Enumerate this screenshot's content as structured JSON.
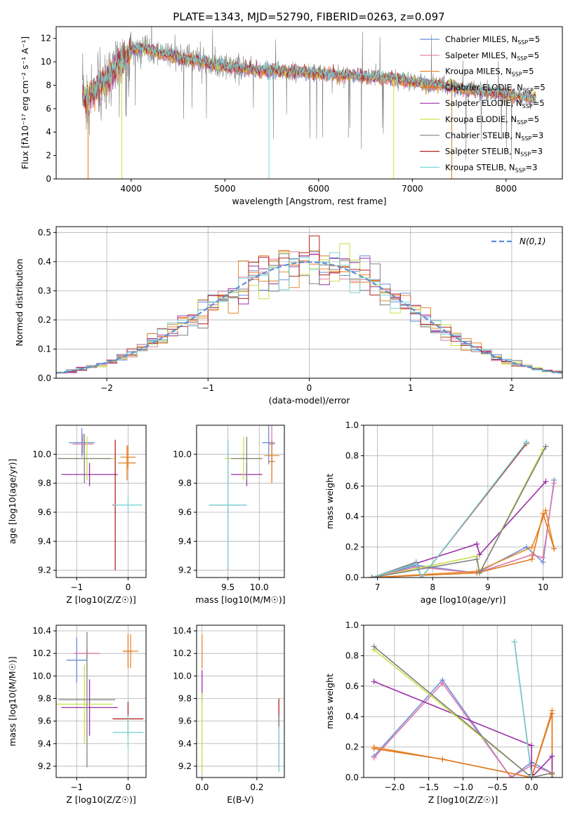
{
  "figure_title": "PLATE=1343, MJD=52790, FIBERID=0263, z=0.097",
  "colors": {
    "Chabrier MILES": "#6a8ed8",
    "Salpeter MILES": "#e07aa6",
    "Kroupa MILES": "#e8892e",
    "Chabrier ELODIE": "#e07a22",
    "Salpeter ELODIE": "#9a2fa6",
    "Kroupa ELODIE": "#c9e04a",
    "Chabrier STELIB": "#808080",
    "Salpeter STELIB": "#b22222",
    "Kroupa STELIB": "#7ad6d9",
    "gaussian": "#5b8fd6",
    "grid": "#b0b0b0",
    "data": "#808080"
  },
  "chart_data": [
    {
      "id": "spectrum",
      "type": "line",
      "title": "PLATE=1343, MJD=52790, FIBERID=0263, z=0.097",
      "xlabel": "wavelength [Angstrom, rest frame]",
      "ylabel": "Flux [fλ10⁻¹⁷ erg cm⁻² s⁻¹ A⁻¹]",
      "xlim": [
        3200,
        8600
      ],
      "ylim": [
        0,
        13
      ],
      "xticks": [
        4000,
        5000,
        6000,
        7000,
        8000
      ],
      "yticks": [
        0,
        2,
        4,
        6,
        8,
        10,
        12
      ],
      "grid": false,
      "legend_loc": "upper right",
      "legend": [
        "Chabrier MILES, N_SSP=5",
        "Salpeter MILES, N_SSP=5",
        "Kroupa MILES, N_SSP=5",
        "Chabrier ELODIE, N_SSP=5",
        "Salpeter ELODIE, N_SSP=5",
        "Kroupa ELODIE, N_SSP=5",
        "Chabrier STELIB, N_SSP=3",
        "Salpeter STELIB, N_SSP=3",
        "Kroupa STELIB, N_SSP=3"
      ],
      "continuum": {
        "x": [
          3500,
          3600,
          3700,
          3800,
          3900,
          4000,
          4100,
          4200,
          4400,
          4600,
          4800,
          5000,
          5200,
          5400,
          5600,
          5800,
          6000,
          6200,
          6400,
          6600,
          6800,
          7000,
          7200,
          7400,
          7600,
          7800,
          8000,
          8200,
          8300
        ],
        "y": [
          7.0,
          7.4,
          8.2,
          9.0,
          10.0,
          10.9,
          11.2,
          11.0,
          10.6,
          10.2,
          9.9,
          9.6,
          9.4,
          9.3,
          9.2,
          9.1,
          9.0,
          8.9,
          8.8,
          8.7,
          8.55,
          8.3,
          8.1,
          7.9,
          7.6,
          7.4,
          7.2,
          7.0,
          6.9
        ]
      }
    },
    {
      "id": "residuals",
      "type": "histogram",
      "xlabel": "(data-model)/error",
      "ylabel": "Normed distribution",
      "xlim": [
        -2.5,
        2.5
      ],
      "ylim": [
        0,
        0.52
      ],
      "xticks": [
        -2,
        -1,
        0,
        1,
        2
      ],
      "yticks": [
        0.0,
        0.1,
        0.2,
        0.3,
        0.4,
        0.5
      ],
      "grid": true,
      "legend_loc": "upper right",
      "legend": [
        "N(0,1)"
      ],
      "reference": "gaussian N(0,1)"
    },
    {
      "id": "age_vs_Z",
      "type": "errorbar",
      "xlabel": "Z [log10(Z/Z☉)]",
      "ylabel": "age  [log10(age/yr)]",
      "xlim": [
        -1.4,
        0.35
      ],
      "ylim": [
        9.15,
        10.2
      ],
      "xticks": [
        -1,
        0
      ],
      "yticks": [
        9.2,
        9.4,
        9.6,
        9.8,
        10.0
      ],
      "grid": true,
      "points": [
        {
          "s": "Chabrier MILES",
          "x": -0.9,
          "xerr": 0.25,
          "y": 10.08,
          "yerr": 0.1
        },
        {
          "s": "Salpeter MILES",
          "x": -0.88,
          "xerr": 0.2,
          "y": 10.07,
          "yerr": 0.07
        },
        {
          "s": "Kroupa MILES",
          "x": 0.0,
          "xerr": 0.15,
          "y": 9.98,
          "yerr": 0.08
        },
        {
          "s": "Chabrier ELODIE",
          "x": -0.02,
          "xerr": 0.17,
          "y": 9.94,
          "yerr": 0.12
        },
        {
          "s": "Salpeter ELODIE",
          "x": -0.75,
          "xerr": 0.55,
          "y": 9.86,
          "yerr": 0.08
        },
        {
          "s": "Kroupa ELODIE",
          "x": -0.8,
          "xerr": 0.55,
          "y": 9.97,
          "yerr": 0.15
        },
        {
          "s": "Chabrier STELIB",
          "x": -0.85,
          "xerr": 0.52,
          "y": 9.97,
          "yerr": 0.17
        },
        {
          "s": "Salpeter STELIB",
          "x": -0.25,
          "xerr": 0.05,
          "y": 9.65,
          "yerr": 0.45
        },
        {
          "s": "Kroupa STELIB",
          "x": 0.0,
          "xerr": 0.28,
          "y": 9.65,
          "yerr": 0.05
        }
      ]
    },
    {
      "id": "age_vs_mass",
      "type": "errorbar",
      "xlabel": "mass [log10(M/M☉)]",
      "ylabel": "",
      "xlim": [
        9.0,
        10.4
      ],
      "ylim": [
        9.15,
        10.2
      ],
      "xticks": [
        9.5,
        10.0
      ],
      "yticks": [
        9.2,
        9.4,
        9.6,
        9.8,
        10.0
      ],
      "grid": true,
      "points": [
        {
          "s": "Chabrier MILES",
          "x": 10.15,
          "xerr": 0.1,
          "y": 10.08,
          "yerr": 0.15
        },
        {
          "s": "Salpeter MILES",
          "x": 10.2,
          "xerr": 0.05,
          "y": 10.07,
          "yerr": 0.15
        },
        {
          "s": "Kroupa MILES",
          "x": 10.2,
          "xerr": 0.12,
          "y": 9.99,
          "yerr": 0.08
        },
        {
          "s": "Chabrier ELODIE",
          "x": 10.2,
          "xerr": 0.05,
          "y": 9.95,
          "yerr": 0.15
        },
        {
          "s": "Salpeter ELODIE",
          "x": 9.8,
          "xerr": 0.25,
          "y": 9.86,
          "yerr": 0.08
        },
        {
          "s": "Kroupa ELODIE",
          "x": 9.75,
          "xerr": 0.3,
          "y": 9.97,
          "yerr": 0.15
        },
        {
          "s": "Chabrier STELIB",
          "x": 9.8,
          "xerr": 0.25,
          "y": 9.97,
          "yerr": 0.15
        },
        {
          "s": "Salpeter STELIB",
          "x": 9.5,
          "xerr": 0.3,
          "y": 9.65,
          "yerr": 0.45
        },
        {
          "s": "Kroupa STELIB",
          "x": 9.5,
          "xerr": 0.3,
          "y": 9.65,
          "yerr": 0.45
        }
      ]
    },
    {
      "id": "massweight_vs_age",
      "type": "line",
      "xlabel": "age  [log10(age/yr)]",
      "ylabel": "mass weight",
      "xlim": [
        6.75,
        10.35
      ],
      "ylim": [
        0,
        1.0
      ],
      "xticks": [
        7,
        8,
        9,
        10
      ],
      "yticks": [
        0.0,
        0.2,
        0.4,
        0.6,
        0.8,
        1.0
      ],
      "grid": true,
      "series": [
        {
          "name": "Chabrier MILES",
          "x": [
            6.9,
            7.7,
            8.8,
            9.7,
            10.0,
            10.2
          ],
          "y": [
            0.0,
            0.08,
            0.03,
            0.2,
            0.1,
            0.64
          ]
        },
        {
          "name": "Salpeter MILES",
          "x": [
            6.9,
            7.7,
            8.8,
            9.8,
            10.0,
            10.2
          ],
          "y": [
            0.0,
            0.07,
            0.03,
            0.15,
            0.13,
            0.62
          ]
        },
        {
          "name": "Kroupa MILES",
          "x": [
            6.9,
            8.8,
            9.8,
            10.05,
            10.2
          ],
          "y": [
            0.0,
            0.04,
            0.2,
            0.44,
            0.19
          ]
        },
        {
          "name": "Chabrier ELODIE",
          "x": [
            6.9,
            8.8,
            9.8,
            10.0,
            10.2
          ],
          "y": [
            0.0,
            0.03,
            0.12,
            0.42,
            0.19
          ]
        },
        {
          "name": "Salpeter ELODIE",
          "x": [
            6.9,
            8.8,
            8.85,
            10.05
          ],
          "y": [
            0.0,
            0.22,
            0.15,
            0.63
          ]
        },
        {
          "name": "Kroupa ELODIE",
          "x": [
            6.9,
            8.8,
            8.85,
            10.0
          ],
          "y": [
            0.0,
            0.14,
            0.03,
            0.84
          ]
        },
        {
          "name": "Chabrier STELIB",
          "x": [
            6.9,
            7.7,
            7.8,
            9.7
          ],
          "y": [
            0.0,
            0.1,
            0.0,
            0.89
          ]
        },
        {
          "name": "Salpeter STELIB",
          "x": [
            6.9,
            7.7,
            7.8,
            9.7
          ],
          "y": [
            0.0,
            0.09,
            0.0,
            0.88
          ]
        },
        {
          "name": "Kroupa STELIB",
          "x": [
            6.9,
            7.7,
            7.8,
            9.7
          ],
          "y": [
            0.0,
            0.09,
            0.0,
            0.89
          ]
        },
        {
          "name": "Chabrier STELIB",
          "x": [
            6.9,
            8.8,
            8.85,
            10.05
          ],
          "y": [
            0.0,
            0.12,
            0.03,
            0.86
          ]
        }
      ]
    },
    {
      "id": "mass_vs_Z",
      "type": "errorbar",
      "xlabel": "Z [log10(Z/Z☉)]",
      "ylabel": "mass [log10(M/M☉)]",
      "xlim": [
        -1.4,
        0.35
      ],
      "ylim": [
        9.1,
        10.45
      ],
      "xticks": [
        -1,
        0
      ],
      "yticks": [
        9.2,
        9.4,
        9.6,
        9.8,
        10.0,
        10.2,
        10.4
      ],
      "grid": true,
      "points": [
        {
          "s": "Chabrier MILES",
          "x": -1.0,
          "xerr": 0.2,
          "y": 10.14,
          "yerr": 0.2
        },
        {
          "s": "Salpeter MILES",
          "x": -0.8,
          "xerr": 0.25,
          "y": 10.2,
          "yerr": 0.05
        },
        {
          "s": "Kroupa MILES",
          "x": 0.05,
          "xerr": 0.15,
          "y": 10.22,
          "yerr": 0.15
        },
        {
          "s": "Chabrier ELODIE",
          "x": 0.0,
          "xerr": 0.1,
          "y": 10.22,
          "yerr": 0.15
        },
        {
          "s": "Salpeter ELODIE",
          "x": -0.75,
          "xerr": 0.55,
          "y": 9.72,
          "yerr": 0.25
        },
        {
          "s": "Kroupa ELODIE",
          "x": -0.85,
          "xerr": 0.55,
          "y": 9.75,
          "yerr": 0.35
        },
        {
          "s": "Chabrier STELIB",
          "x": -0.8,
          "xerr": 0.55,
          "y": 9.79,
          "yerr": 0.6
        },
        {
          "s": "Salpeter STELIB",
          "x": 0.0,
          "xerr": 0.3,
          "y": 9.62,
          "yerr": 0.15
        },
        {
          "s": "Kroupa STELIB",
          "x": 0.0,
          "xerr": 0.3,
          "y": 9.5,
          "yerr": 0.15
        }
      ]
    },
    {
      "id": "mass_vs_ebv",
      "type": "errorbar",
      "xlabel": "E(B-V)",
      "ylabel": "",
      "xlim": [
        -0.02,
        0.3
      ],
      "ylim": [
        9.1,
        10.45
      ],
      "xticks": [
        0.0,
        0.2
      ],
      "yticks": [
        9.2,
        9.4,
        9.6,
        9.8,
        10.0,
        10.2,
        10.4
      ],
      "grid": true,
      "points": [
        {
          "s": "Kroupa MILES",
          "x": 0.0,
          "xerr": 0.0,
          "y": 10.22,
          "yerr": 0.15
        },
        {
          "s": "Salpeter ELODIE",
          "x": 0.0,
          "xerr": 0.0,
          "y": 9.9,
          "yerr": 0.15
        },
        {
          "s": "Kroupa ELODIE",
          "x": 0.0,
          "xerr": 0.0,
          "y": 9.5,
          "yerr": 0.35
        },
        {
          "s": "Salpeter STELIB",
          "x": 0.28,
          "xerr": 0.0,
          "y": 9.5,
          "yerr": 0.3
        },
        {
          "s": "Chabrier STELIB",
          "x": 0.28,
          "xerr": 0.0,
          "y": 9.4,
          "yerr": 0.25
        },
        {
          "s": "Kroupa STELIB",
          "x": 0.28,
          "xerr": 0.0,
          "y": 9.35,
          "yerr": 0.2
        }
      ]
    },
    {
      "id": "massweight_vs_Z",
      "type": "line",
      "xlabel": "Z [log10(Z/Z☉)]",
      "ylabel": "mass weight",
      "xlim": [
        -2.45,
        0.45
      ],
      "ylim": [
        0,
        1.0
      ],
      "xticks": [
        -2.0,
        -1.5,
        -1.0,
        -0.5,
        0.0
      ],
      "yticks": [
        0.0,
        0.2,
        0.4,
        0.6,
        0.8,
        1.0
      ],
      "grid": true,
      "series": [
        {
          "name": "Chabrier MILES",
          "x": [
            -2.3,
            -1.3,
            -0.3,
            0.0,
            0.3
          ],
          "y": [
            0.14,
            0.64,
            0.0,
            0.1,
            0.03
          ]
        },
        {
          "name": "Salpeter MILES",
          "x": [
            -2.3,
            -1.3,
            -0.3,
            0.0,
            0.3
          ],
          "y": [
            0.13,
            0.62,
            0.0,
            0.08,
            0.03
          ]
        },
        {
          "name": "Kroupa MILES",
          "x": [
            -2.3,
            -1.3,
            0.0,
            0.3,
            0.3
          ],
          "y": [
            0.2,
            0.12,
            0.0,
            0.44,
            0.03
          ]
        },
        {
          "name": "Chabrier ELODIE",
          "x": [
            -2.3,
            -1.3,
            0.0,
            0.3,
            0.3
          ],
          "y": [
            0.19,
            0.12,
            0.0,
            0.42,
            0.02
          ]
        },
        {
          "name": "Salpeter ELODIE",
          "x": [
            -2.3,
            0.0,
            0.0,
            0.3,
            0.3
          ],
          "y": [
            0.63,
            0.21,
            0.0,
            0.14,
            0.0
          ]
        },
        {
          "name": "Kroupa ELODIE",
          "x": [
            -2.3,
            0.0,
            0.3
          ],
          "y": [
            0.84,
            0.0,
            0.03
          ]
        },
        {
          "name": "Chabrier STELIB",
          "x": [
            -2.3,
            0.0,
            0.3
          ],
          "y": [
            0.86,
            0.0,
            0.03
          ]
        },
        {
          "name": "Salpeter STELIB",
          "x": [
            -0.25,
            0.0
          ],
          "y": [
            0.89,
            0.02
          ]
        },
        {
          "name": "Kroupa STELIB",
          "x": [
            -0.25,
            0.0
          ],
          "y": [
            0.89,
            0.01
          ]
        }
      ]
    }
  ]
}
